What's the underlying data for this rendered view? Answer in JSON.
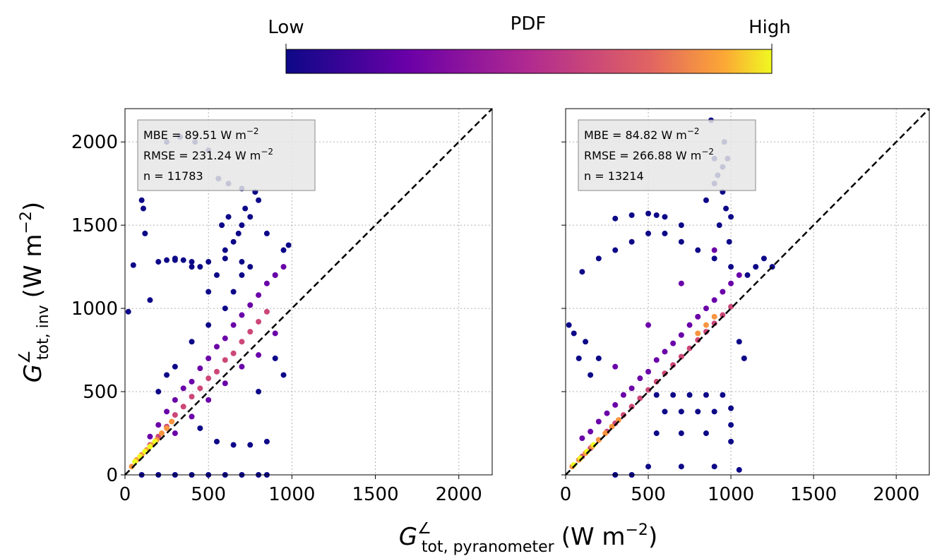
{
  "colorbar": {
    "label": "PDF",
    "low_label": "Low",
    "high_label": "High"
  },
  "xlabel": {
    "symbol": "G",
    "sup": "∠",
    "sub": "tot, pyranometer",
    "unit": "(W m",
    "unit_sup": "−2",
    "close": ")"
  },
  "ylabel": {
    "symbol": "G",
    "sup": "∠",
    "sub": "tot, inv",
    "unit": "(W m",
    "unit_sup": "−2",
    "close": ")"
  },
  "chart_data": [
    {
      "type": "scatter",
      "xlim": [
        0,
        2200
      ],
      "ylim": [
        0,
        2200
      ],
      "xticks": [
        0,
        500,
        1000,
        1500,
        2000
      ],
      "yticks": [
        0,
        500,
        1000,
        1500,
        2000
      ],
      "ytick_labels": true,
      "grid": true,
      "annotations": [
        {
          "text": "MBE = 89.51 W m",
          "sup": "−2"
        },
        {
          "text": "RMSE = 231.24 W m",
          "sup": "−2"
        },
        {
          "text": "n = 11783"
        }
      ],
      "series": [
        {
          "color": "#0d0887",
          "x": [
            20,
            50,
            100,
            150,
            200,
            250,
            300,
            350,
            400,
            450,
            500,
            550,
            600,
            650,
            700,
            750,
            800,
            850,
            900,
            950,
            980,
            100,
            200,
            300,
            400,
            500,
            600,
            700,
            800,
            850,
            300,
            400,
            500,
            600,
            650,
            700,
            750,
            780,
            110,
            120,
            300,
            400,
            500,
            600,
            700,
            450,
            550,
            650,
            750,
            850,
            950,
            580,
            620,
            680,
            720,
            200,
            250,
            800,
            900,
            250,
            330,
            420,
            500,
            560,
            620,
            700,
            780
          ],
          "values": [
            980,
            1260,
            1650,
            1050,
            1280,
            1290,
            1290,
            1290,
            1250,
            1250,
            1100,
            1200,
            1350,
            1400,
            1500,
            1550,
            1650,
            1450,
            1200,
            1350,
            1380,
            0,
            0,
            0,
            0,
            0,
            0,
            0,
            0,
            0,
            650,
            800,
            900,
            1000,
            1100,
            1200,
            1250,
            1700,
            1600,
            1450,
            1300,
            1280,
            1280,
            1300,
            1280,
            280,
            200,
            180,
            180,
            200,
            600,
            1500,
            1550,
            1450,
            1600,
            500,
            600,
            500,
            700,
            2000,
            2030,
            2000,
            1950,
            1780,
            1750,
            1720,
            1700
          ]
        },
        {
          "color": "#6a00a8",
          "x": [
            150,
            200,
            250,
            300,
            350,
            400,
            450,
            500,
            550,
            600,
            650,
            700,
            750,
            800,
            850,
            900,
            950,
            300,
            400,
            500,
            600,
            700,
            800,
            900
          ],
          "values": [
            230,
            300,
            380,
            450,
            520,
            560,
            640,
            700,
            770,
            820,
            900,
            960,
            1020,
            1080,
            1150,
            1200,
            1250,
            250,
            350,
            450,
            550,
            650,
            720,
            850
          ]
        },
        {
          "color": "#cc4778",
          "x": [
            100,
            150,
            200,
            250,
            300,
            350,
            400,
            450,
            500,
            550,
            600,
            650,
            700,
            750,
            800,
            850
          ],
          "values": [
            120,
            180,
            230,
            290,
            360,
            410,
            470,
            520,
            580,
            620,
            690,
            730,
            800,
            860,
            920,
            980
          ]
        },
        {
          "color": "#f89540",
          "x": [
            40,
            70,
            100,
            130,
            160,
            190,
            220,
            250,
            280
          ],
          "values": [
            50,
            90,
            120,
            150,
            180,
            210,
            250,
            280,
            320
          ]
        },
        {
          "color": "#f0f921",
          "x": [
            60,
            90,
            120,
            150,
            180
          ],
          "values": [
            80,
            110,
            140,
            170,
            200
          ]
        }
      ]
    },
    {
      "type": "scatter",
      "xlim": [
        0,
        2200
      ],
      "ylim": [
        0,
        2200
      ],
      "xticks": [
        0,
        500,
        1000,
        1500,
        2000
      ],
      "yticks": [
        0,
        500,
        1000,
        1500,
        2000
      ],
      "ytick_labels": false,
      "grid": true,
      "annotations": [
        {
          "text": "MBE = 84.82 W m",
          "sup": "−2"
        },
        {
          "text": "RMSE = 266.88 W m",
          "sup": "−2"
        },
        {
          "text": "n = 13214"
        }
      ],
      "series": [
        {
          "color": "#0d0887",
          "x": [
            880,
            900,
            920,
            950,
            970,
            980,
            1000,
            990,
            960,
            930,
            850,
            900,
            950,
            100,
            200,
            300,
            400,
            500,
            600,
            700,
            800,
            900,
            1000,
            300,
            400,
            500,
            550,
            600,
            700,
            550,
            650,
            750,
            850,
            950,
            1000,
            600,
            700,
            800,
            900,
            1000,
            550,
            700,
            850,
            1000,
            500,
            700,
            900,
            1050,
            20,
            50,
            80,
            120,
            150,
            200,
            1100,
            1150,
            1200,
            1250,
            1050,
            1080,
            300,
            400
          ],
          "values": [
            2130,
            1900,
            1800,
            1700,
            1600,
            1900,
            1550,
            1400,
            2000,
            1500,
            1650,
            1750,
            1850,
            1220,
            1300,
            1350,
            1400,
            1450,
            1450,
            1400,
            1350,
            1300,
            1250,
            1540,
            1560,
            1570,
            1560,
            1550,
            1500,
            480,
            480,
            480,
            480,
            480,
            400,
            380,
            380,
            380,
            380,
            300,
            250,
            250,
            250,
            200,
            50,
            50,
            50,
            30,
            900,
            850,
            700,
            800,
            600,
            700,
            1200,
            1250,
            1300,
            1250,
            800,
            700,
            0,
            0
          ]
        },
        {
          "color": "#6a00a8",
          "x": [
            100,
            150,
            200,
            250,
            300,
            350,
            400,
            450,
            500,
            550,
            600,
            650,
            700,
            750,
            800,
            850,
            900,
            950,
            1000,
            1050,
            300,
            500,
            700,
            900
          ],
          "values": [
            220,
            260,
            320,
            370,
            420,
            480,
            520,
            580,
            620,
            690,
            740,
            790,
            840,
            900,
            950,
            1000,
            1050,
            1100,
            1150,
            1200,
            650,
            900,
            1150,
            1350
          ]
        },
        {
          "color": "#cc4778",
          "x": [
            100,
            150,
            200,
            250,
            300,
            350,
            400,
            450,
            500,
            550,
            600,
            650,
            700,
            750,
            800,
            850,
            900,
            950,
            1000
          ],
          "values": [
            110,
            160,
            210,
            260,
            310,
            360,
            410,
            460,
            510,
            560,
            610,
            660,
            710,
            760,
            810,
            860,
            910,
            960,
            1010
          ]
        },
        {
          "color": "#f89540",
          "x": [
            40,
            80,
            120,
            160,
            200,
            240,
            280,
            320,
            800,
            850,
            900
          ],
          "values": [
            50,
            90,
            130,
            170,
            210,
            250,
            290,
            330,
            850,
            900,
            950
          ]
        },
        {
          "color": "#f0f921",
          "x": [
            50,
            90,
            130,
            170
          ],
          "values": [
            60,
            100,
            140,
            180
          ]
        }
      ]
    }
  ]
}
